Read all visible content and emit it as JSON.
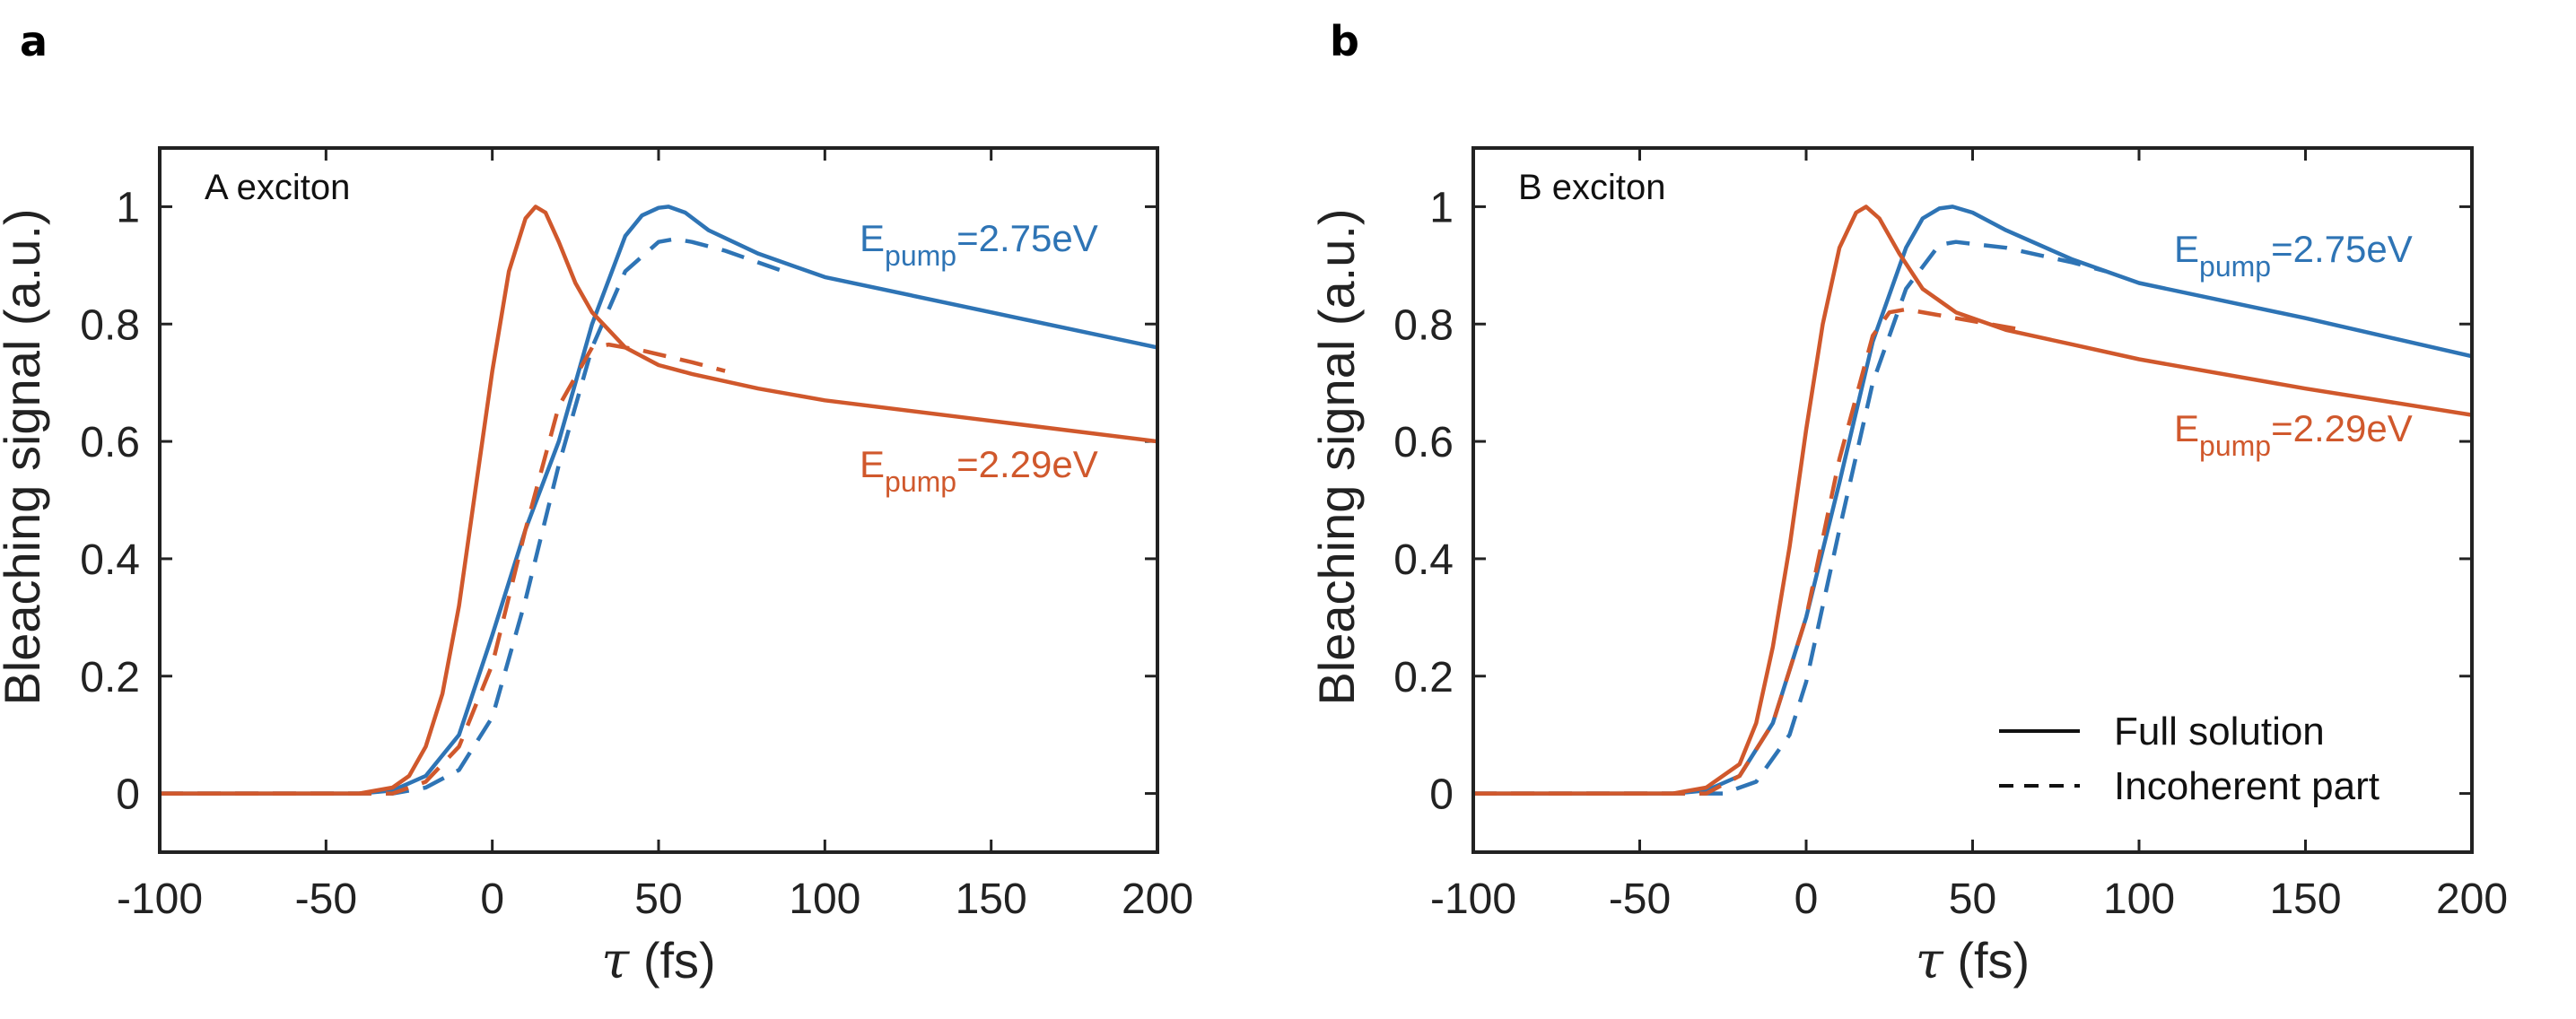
{
  "colors": {
    "blue": "#2e74b5",
    "orange": "#d0582c",
    "axis": "#222222"
  },
  "chart_data": [
    {
      "type": "line",
      "panel_label": "a",
      "inner_title": "A exciton",
      "xlabel_symbol": "τ",
      "xlabel_unit": "(fs)",
      "ylabel": "Bleaching signal (a.u.)",
      "xlim": [
        -100,
        200
      ],
      "ylim": [
        -0.1,
        1.1
      ],
      "xticks": [
        -100,
        -50,
        0,
        50,
        100,
        150,
        200
      ],
      "yticks": [
        0,
        0.2,
        0.4,
        0.6,
        0.8,
        1
      ],
      "ytick_labels": [
        "0",
        "0.2",
        "0.4",
        "0.6",
        "0.8",
        "1"
      ],
      "annotations": [
        {
          "prefix": "E",
          "sub": "pump",
          "value": "=2.75eV",
          "color": "blue"
        },
        {
          "prefix": "E",
          "sub": "pump",
          "value": "=2.29eV",
          "color": "orange"
        }
      ],
      "series": [
        {
          "name": "Full solution, Epump=2.75eV",
          "color": "blue",
          "dash": "solid",
          "x": [
            -100,
            -40,
            -30,
            -20,
            -10,
            0,
            10,
            20,
            30,
            40,
            45,
            50,
            53,
            58,
            65,
            80,
            100,
            150,
            200
          ],
          "y": [
            0,
            0,
            0.005,
            0.03,
            0.1,
            0.27,
            0.45,
            0.6,
            0.8,
            0.95,
            0.985,
            0.998,
            1.0,
            0.99,
            0.96,
            0.92,
            0.88,
            0.82,
            0.76
          ]
        },
        {
          "name": "Incoherent part, Epump=2.75eV",
          "color": "blue",
          "dash": "dashed",
          "x": [
            -100,
            -30,
            -20,
            -10,
            0,
            10,
            20,
            30,
            40,
            50,
            55,
            60,
            70,
            80,
            90
          ],
          "y": [
            0,
            0,
            0.01,
            0.04,
            0.13,
            0.33,
            0.56,
            0.76,
            0.89,
            0.94,
            0.945,
            0.94,
            0.925,
            0.905,
            0.885
          ]
        },
        {
          "name": "Full solution, Epump=2.29eV",
          "color": "orange",
          "dash": "solid",
          "x": [
            -100,
            -40,
            -30,
            -25,
            -20,
            -15,
            -10,
            -5,
            0,
            5,
            10,
            13,
            16,
            20,
            25,
            30,
            40,
            50,
            60,
            80,
            100,
            150,
            200
          ],
          "y": [
            0,
            0,
            0.01,
            0.03,
            0.08,
            0.17,
            0.32,
            0.52,
            0.72,
            0.89,
            0.98,
            1.0,
            0.99,
            0.94,
            0.87,
            0.82,
            0.76,
            0.73,
            0.715,
            0.69,
            0.67,
            0.635,
            0.6
          ]
        },
        {
          "name": "Incoherent part, Epump=2.29eV",
          "color": "orange",
          "dash": "dashed",
          "x": [
            -100,
            -30,
            -20,
            -10,
            0,
            10,
            20,
            30,
            35,
            45,
            60,
            70
          ],
          "y": [
            0,
            0,
            0.02,
            0.08,
            0.22,
            0.45,
            0.66,
            0.76,
            0.765,
            0.755,
            0.735,
            0.72
          ]
        }
      ]
    },
    {
      "type": "line",
      "panel_label": "b",
      "inner_title": "B exciton",
      "xlabel_symbol": "τ",
      "xlabel_unit": "(fs)",
      "ylabel": "Bleaching signal (a.u.)",
      "xlim": [
        -100,
        200
      ],
      "ylim": [
        -0.1,
        1.1
      ],
      "xticks": [
        -100,
        -50,
        0,
        50,
        100,
        150,
        200
      ],
      "yticks": [
        0,
        0.2,
        0.4,
        0.6,
        0.8,
        1
      ],
      "ytick_labels": [
        "0",
        "0.2",
        "0.4",
        "0.6",
        "0.8",
        "1"
      ],
      "annotations": [
        {
          "prefix": "E",
          "sub": "pump",
          "value": "=2.75eV",
          "color": "blue"
        },
        {
          "prefix": "E",
          "sub": "pump",
          "value": "=2.29eV",
          "color": "orange"
        }
      ],
      "legend": {
        "position": "bottom-right",
        "entries": [
          {
            "label": "Full solution",
            "dash": "solid"
          },
          {
            "label": "Incoherent part",
            "dash": "dashed"
          }
        ]
      },
      "series": [
        {
          "name": "Full solution, Epump=2.75eV",
          "color": "blue",
          "dash": "solid",
          "x": [
            -100,
            -40,
            -30,
            -20,
            -10,
            0,
            10,
            20,
            30,
            35,
            40,
            44,
            50,
            60,
            80,
            100,
            150,
            200
          ],
          "y": [
            0,
            0,
            0.005,
            0.03,
            0.12,
            0.3,
            0.53,
            0.77,
            0.93,
            0.98,
            0.997,
            1.0,
            0.99,
            0.96,
            0.91,
            0.87,
            0.81,
            0.745
          ]
        },
        {
          "name": "Incoherent part, Epump=2.75eV",
          "color": "blue",
          "dash": "dashed",
          "x": [
            -100,
            -25,
            -15,
            -5,
            0,
            10,
            20,
            30,
            40,
            45,
            60,
            80,
            90
          ],
          "y": [
            0,
            0,
            0.02,
            0.1,
            0.19,
            0.45,
            0.7,
            0.86,
            0.935,
            0.94,
            0.93,
            0.905,
            0.89
          ]
        },
        {
          "name": "Full solution, Epump=2.29eV",
          "color": "orange",
          "dash": "solid",
          "x": [
            -100,
            -40,
            -30,
            -20,
            -15,
            -10,
            -5,
            0,
            5,
            10,
            15,
            18,
            22,
            28,
            35,
            45,
            60,
            80,
            100,
            150,
            200
          ],
          "y": [
            0,
            0,
            0.01,
            0.05,
            0.12,
            0.25,
            0.42,
            0.62,
            0.8,
            0.93,
            0.99,
            1.0,
            0.98,
            0.92,
            0.86,
            0.82,
            0.79,
            0.765,
            0.74,
            0.69,
            0.645
          ]
        },
        {
          "name": "Incoherent part, Epump=2.29eV",
          "color": "orange",
          "dash": "dashed",
          "x": [
            -100,
            -30,
            -20,
            -10,
            0,
            10,
            20,
            25,
            30,
            40,
            55,
            65
          ],
          "y": [
            0,
            0,
            0.03,
            0.12,
            0.3,
            0.57,
            0.78,
            0.82,
            0.825,
            0.815,
            0.8,
            0.79
          ]
        }
      ]
    }
  ]
}
